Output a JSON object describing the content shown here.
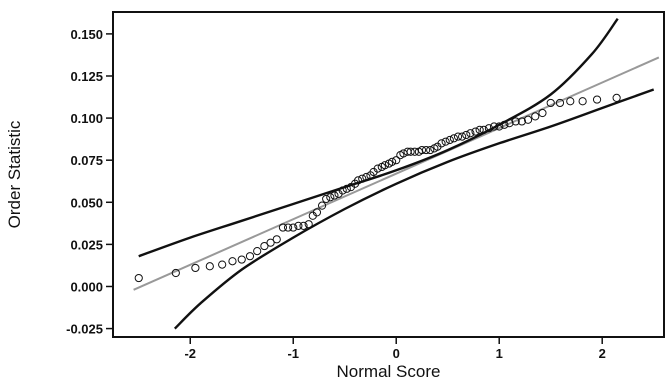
{
  "chart_data": {
    "type": "scatter",
    "xlabel": "Normal Score",
    "ylabel": "Order Statistic",
    "xlim": [
      -2.75,
      2.6
    ],
    "ylim": [
      -0.03,
      0.163
    ],
    "x_ticks": [
      -2,
      -1,
      0,
      1,
      2
    ],
    "x_tick_labels": [
      "-2",
      "-1",
      "0",
      "1",
      "2"
    ],
    "y_ticks": [
      -0.025,
      0.0,
      0.025,
      0.05,
      0.075,
      0.1,
      0.125,
      0.15
    ],
    "y_tick_labels": [
      "-0.025",
      "0.000",
      "0.025",
      "0.050",
      "0.075",
      "0.100",
      "0.125",
      "0.150"
    ],
    "grid": false,
    "legend": "none",
    "colors": {
      "points": "#111111",
      "fit_line": "#999999",
      "envelope": "#111111"
    },
    "points": {
      "x": [
        -2.5,
        -2.14,
        -1.95,
        -1.81,
        -1.69,
        -1.59,
        -1.5,
        -1.42,
        -1.35,
        -1.28,
        -1.22,
        -1.16,
        -1.1,
        -1.05,
        -1.0,
        -0.95,
        -0.9,
        -0.85,
        -0.81,
        -0.77,
        -0.72,
        -0.68,
        -0.64,
        -0.6,
        -0.56,
        -0.52,
        -0.48,
        -0.44,
        -0.4,
        -0.37,
        -0.33,
        -0.29,
        -0.25,
        -0.22,
        -0.18,
        -0.14,
        -0.11,
        -0.07,
        -0.04,
        0.0,
        0.04,
        0.07,
        0.11,
        0.14,
        0.18,
        0.22,
        0.25,
        0.29,
        0.33,
        0.37,
        0.4,
        0.44,
        0.48,
        0.52,
        0.56,
        0.6,
        0.64,
        0.68,
        0.72,
        0.77,
        0.81,
        0.85,
        0.9,
        0.95,
        1.0,
        1.05,
        1.1,
        1.16,
        1.22,
        1.28,
        1.35,
        1.42,
        1.5,
        1.59,
        1.69,
        1.81,
        1.95,
        2.14
      ],
      "y": [
        0.005,
        0.008,
        0.011,
        0.012,
        0.013,
        0.015,
        0.016,
        0.018,
        0.021,
        0.024,
        0.026,
        0.028,
        0.035,
        0.035,
        0.035,
        0.036,
        0.036,
        0.037,
        0.042,
        0.044,
        0.048,
        0.052,
        0.053,
        0.054,
        0.055,
        0.057,
        0.058,
        0.059,
        0.061,
        0.063,
        0.064,
        0.065,
        0.066,
        0.068,
        0.07,
        0.071,
        0.072,
        0.073,
        0.074,
        0.075,
        0.078,
        0.079,
        0.08,
        0.08,
        0.08,
        0.08,
        0.081,
        0.081,
        0.081,
        0.082,
        0.083,
        0.085,
        0.086,
        0.087,
        0.088,
        0.089,
        0.089,
        0.09,
        0.091,
        0.092,
        0.093,
        0.093,
        0.094,
        0.095,
        0.095,
        0.096,
        0.097,
        0.098,
        0.098,
        0.099,
        0.101,
        0.103,
        0.109,
        0.109,
        0.11,
        0.11,
        0.111,
        0.112
      ]
    },
    "fit_line": {
      "x": [
        -2.55,
        2.55
      ],
      "y": [
        -0.002,
        0.136
      ]
    },
    "upper_envelope": {
      "x": [
        -2.5,
        -2.0,
        -1.5,
        -1.0,
        -0.5,
        0.0,
        0.5,
        1.0,
        1.5,
        1.9,
        2.15
      ],
      "y": [
        0.018,
        0.029,
        0.039,
        0.049,
        0.059,
        0.069,
        0.081,
        0.096,
        0.114,
        0.138,
        0.159
      ]
    },
    "lower_envelope": {
      "x": [
        -2.15,
        -1.9,
        -1.5,
        -1.0,
        -0.5,
        0.0,
        0.5,
        1.0,
        1.5,
        2.0,
        2.5
      ],
      "y": [
        -0.025,
        -0.01,
        0.01,
        0.029,
        0.046,
        0.061,
        0.074,
        0.085,
        0.095,
        0.106,
        0.117
      ]
    }
  }
}
